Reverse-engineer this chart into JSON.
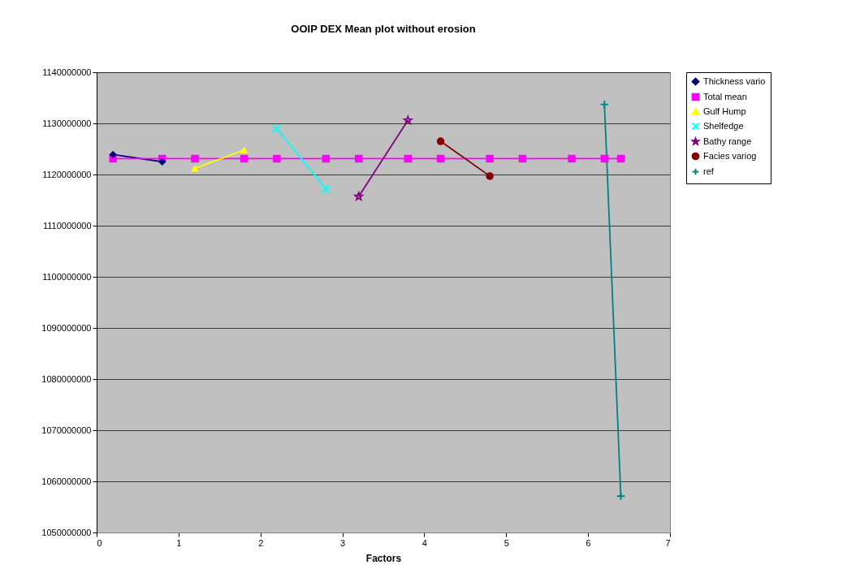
{
  "chart_data": {
    "type": "line",
    "title": "OOIP DEX Mean plot without erosion",
    "xlabel": "Factors",
    "xlim": [
      0,
      7
    ],
    "xticks": [
      0,
      1,
      2,
      3,
      4,
      5,
      6,
      7
    ],
    "ylim": [
      1050000000,
      1140000000
    ],
    "yticks": [
      1050000000,
      1060000000,
      1070000000,
      1080000000,
      1090000000,
      1100000000,
      1110000000,
      1120000000,
      1130000000,
      1140000000
    ],
    "grid": "y",
    "legend": "right",
    "line_style": "solid",
    "series": [
      {
        "name": "Thickness vario",
        "color": "#000080",
        "marker": "diamond",
        "x": [
          0.2,
          0.8
        ],
        "values": [
          1123900000,
          1122500000
        ]
      },
      {
        "name": "Total mean",
        "color": "#ff00ff",
        "marker": "square",
        "x": [
          0.2,
          0.8,
          1.2,
          1.8,
          2.2,
          2.8,
          3.2,
          3.8,
          4.2,
          4.8,
          5.2,
          5.8,
          6.2,
          6.4
        ],
        "values": [
          1123100000,
          1123100000,
          1123100000,
          1123100000,
          1123100000,
          1123100000,
          1123100000,
          1123100000,
          1123100000,
          1123100000,
          1123100000,
          1123100000,
          1123100000,
          1123100000
        ]
      },
      {
        "name": "Gulf Hump",
        "color": "#ffff00",
        "marker": "triangle",
        "x": [
          1.2,
          1.8
        ],
        "values": [
          1121200000,
          1124800000
        ]
      },
      {
        "name": "Shelfedge",
        "color": "#00ffff",
        "marker": "x",
        "x": [
          2.2,
          2.8
        ],
        "values": [
          1129000000,
          1117200000
        ]
      },
      {
        "name": "Bathy range",
        "color": "#800080",
        "marker": "star",
        "x": [
          3.2,
          3.8
        ],
        "values": [
          1115700000,
          1130600000
        ]
      },
      {
        "name": "Facies variog",
        "color": "#800000",
        "marker": "circle",
        "x": [
          4.2,
          4.8
        ],
        "values": [
          1126500000,
          1119700000
        ]
      },
      {
        "name": "ref",
        "color": "#008080",
        "marker": "cross",
        "x": [
          6.2,
          6.4
        ],
        "values": [
          1133700000,
          1057100000
        ]
      }
    ]
  }
}
